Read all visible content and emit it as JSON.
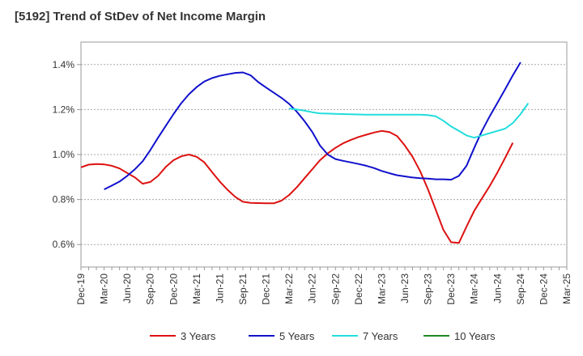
{
  "chart_data": {
    "type": "line",
    "title": "[5192]  Trend of StDev of Net Income Margin",
    "xlabel": "",
    "ylabel": "",
    "x_ticks": [
      "Dec-19",
      "Mar-20",
      "Jun-20",
      "Sep-20",
      "Dec-20",
      "Mar-21",
      "Jun-21",
      "Sep-21",
      "Dec-21",
      "Mar-22",
      "Jun-22",
      "Sep-22",
      "Dec-22",
      "Mar-23",
      "Jun-23",
      "Sep-23",
      "Dec-23",
      "Mar-24",
      "Jun-24",
      "Sep-24",
      "Dec-24",
      "Mar-25"
    ],
    "y_ticks": [
      0.6,
      0.8,
      1.0,
      1.2,
      1.4
    ],
    "y_tick_labels": [
      "0.6%",
      "0.8%",
      "1.0%",
      "1.2%",
      "1.4%"
    ],
    "ylim": [
      0.5,
      1.5
    ],
    "grid": "horizontal dashed",
    "legend_position": "bottom",
    "series": [
      {
        "name": "3 Years",
        "color": "#dd1111",
        "points": [
          [
            "Dec-19",
            0.943
          ],
          [
            "Jan-20",
            0.955
          ],
          [
            "Feb-20",
            0.958
          ],
          [
            "Mar-20",
            0.956
          ],
          [
            "Apr-20",
            0.95
          ],
          [
            "May-20",
            0.938
          ],
          [
            "Jun-20",
            0.918
          ],
          [
            "Jul-20",
            0.898
          ],
          [
            "Aug-20",
            0.87
          ],
          [
            "Sep-20",
            0.878
          ],
          [
            "Oct-20",
            0.905
          ],
          [
            "Nov-20",
            0.945
          ],
          [
            "Dec-20",
            0.975
          ],
          [
            "Jan-21",
            0.992
          ],
          [
            "Feb-21",
            1.0
          ],
          [
            "Mar-21",
            0.99
          ],
          [
            "Apr-21",
            0.965
          ],
          [
            "May-21",
            0.922
          ],
          [
            "Jun-21",
            0.88
          ],
          [
            "Jul-21",
            0.843
          ],
          [
            "Aug-21",
            0.812
          ],
          [
            "Sep-21",
            0.79
          ],
          [
            "Oct-21",
            0.785
          ],
          [
            "Nov-21",
            0.784
          ],
          [
            "Dec-21",
            0.783
          ],
          [
            "Jan-22",
            0.783
          ],
          [
            "Feb-22",
            0.795
          ],
          [
            "Mar-22",
            0.82
          ],
          [
            "Apr-22",
            0.855
          ],
          [
            "May-22",
            0.895
          ],
          [
            "Jun-22",
            0.935
          ],
          [
            "Jul-22",
            0.975
          ],
          [
            "Aug-22",
            1.005
          ],
          [
            "Sep-22",
            1.03
          ],
          [
            "Oct-22",
            1.05
          ],
          [
            "Nov-22",
            1.065
          ],
          [
            "Dec-22",
            1.078
          ],
          [
            "Jan-23",
            1.088
          ],
          [
            "Feb-23",
            1.098
          ],
          [
            "Mar-23",
            1.105
          ],
          [
            "Apr-23",
            1.1
          ],
          [
            "May-23",
            1.082
          ],
          [
            "Jun-23",
            1.04
          ],
          [
            "Jul-23",
            0.99
          ],
          [
            "Aug-23",
            0.925
          ],
          [
            "Sep-23",
            0.845
          ],
          [
            "Oct-23",
            0.755
          ],
          [
            "Nov-23",
            0.665
          ],
          [
            "Dec-23",
            0.61
          ],
          [
            "Jan-24",
            0.607
          ],
          [
            "Feb-24",
            0.68
          ],
          [
            "Mar-24",
            0.75
          ],
          [
            "Apr-24",
            0.805
          ],
          [
            "May-24",
            0.86
          ],
          [
            "Jun-24",
            0.92
          ],
          [
            "Jul-24",
            0.985
          ],
          [
            "Aug-24",
            1.052
          ]
        ]
      },
      {
        "name": "5 Years",
        "color": "#1111cc",
        "points": [
          [
            "Mar-20",
            0.845
          ],
          [
            "Apr-20",
            0.862
          ],
          [
            "May-20",
            0.88
          ],
          [
            "Jun-20",
            0.905
          ],
          [
            "Jul-20",
            0.935
          ],
          [
            "Aug-20",
            0.97
          ],
          [
            "Sep-20",
            1.02
          ],
          [
            "Oct-20",
            1.075
          ],
          [
            "Nov-20",
            1.128
          ],
          [
            "Dec-20",
            1.18
          ],
          [
            "Jan-21",
            1.228
          ],
          [
            "Feb-21",
            1.268
          ],
          [
            "Mar-21",
            1.3
          ],
          [
            "Apr-21",
            1.325
          ],
          [
            "May-21",
            1.34
          ],
          [
            "Jun-21",
            1.35
          ],
          [
            "Jul-21",
            1.357
          ],
          [
            "Aug-21",
            1.363
          ],
          [
            "Sep-21",
            1.365
          ],
          [
            "Oct-21",
            1.352
          ],
          [
            "Nov-21",
            1.322
          ],
          [
            "Dec-21",
            1.298
          ],
          [
            "Jan-22",
            1.275
          ],
          [
            "Feb-22",
            1.252
          ],
          [
            "Mar-22",
            1.225
          ],
          [
            "Apr-22",
            1.19
          ],
          [
            "May-22",
            1.148
          ],
          [
            "Jun-22",
            1.1
          ],
          [
            "Jul-22",
            1.04
          ],
          [
            "Aug-22",
            1.0
          ],
          [
            "Sep-22",
            0.98
          ],
          [
            "Oct-22",
            0.972
          ],
          [
            "Nov-22",
            0.965
          ],
          [
            "Dec-22",
            0.958
          ],
          [
            "Jan-23",
            0.95
          ],
          [
            "Feb-23",
            0.94
          ],
          [
            "Mar-23",
            0.927
          ],
          [
            "Apr-23",
            0.917
          ],
          [
            "May-23",
            0.908
          ],
          [
            "Jun-23",
            0.903
          ],
          [
            "Jul-23",
            0.898
          ],
          [
            "Aug-23",
            0.895
          ],
          [
            "Sep-23",
            0.893
          ],
          [
            "Oct-23",
            0.89
          ],
          [
            "Nov-23",
            0.89
          ],
          [
            "Dec-23",
            0.888
          ],
          [
            "Jan-24",
            0.905
          ],
          [
            "Feb-24",
            0.95
          ],
          [
            "Mar-24",
            1.03
          ],
          [
            "Apr-24",
            1.105
          ],
          [
            "May-24",
            1.17
          ],
          [
            "Jun-24",
            1.23
          ],
          [
            "Jul-24",
            1.29
          ],
          [
            "Aug-24",
            1.352
          ],
          [
            "Sep-24",
            1.41
          ]
        ]
      },
      {
        "name": "7 Years",
        "color": "#22dddd",
        "points": [
          [
            "Mar-22",
            1.205
          ],
          [
            "Apr-22",
            1.2
          ],
          [
            "May-22",
            1.195
          ],
          [
            "Jun-22",
            1.188
          ],
          [
            "Jul-22",
            1.183
          ],
          [
            "Aug-22",
            1.182
          ],
          [
            "Sep-22",
            1.181
          ],
          [
            "Oct-22",
            1.18
          ],
          [
            "Nov-22",
            1.179
          ],
          [
            "Dec-22",
            1.178
          ],
          [
            "Jan-23",
            1.177
          ],
          [
            "Feb-23",
            1.177
          ],
          [
            "Mar-23",
            1.177
          ],
          [
            "Apr-23",
            1.177
          ],
          [
            "May-23",
            1.177
          ],
          [
            "Jun-23",
            1.177
          ],
          [
            "Jul-23",
            1.177
          ],
          [
            "Aug-23",
            1.177
          ],
          [
            "Sep-23",
            1.175
          ],
          [
            "Oct-23",
            1.17
          ],
          [
            "Nov-23",
            1.15
          ],
          [
            "Dec-23",
            1.125
          ],
          [
            "Jan-24",
            1.105
          ],
          [
            "Feb-24",
            1.085
          ],
          [
            "Mar-24",
            1.075
          ],
          [
            "Apr-24",
            1.085
          ],
          [
            "May-24",
            1.095
          ],
          [
            "Jun-24",
            1.105
          ],
          [
            "Jul-24",
            1.115
          ],
          [
            "Aug-24",
            1.14
          ],
          [
            "Sep-24",
            1.18
          ],
          [
            "Oct-24",
            1.228
          ]
        ]
      },
      {
        "name": "10 Years",
        "color": "#228822",
        "points": []
      }
    ]
  }
}
